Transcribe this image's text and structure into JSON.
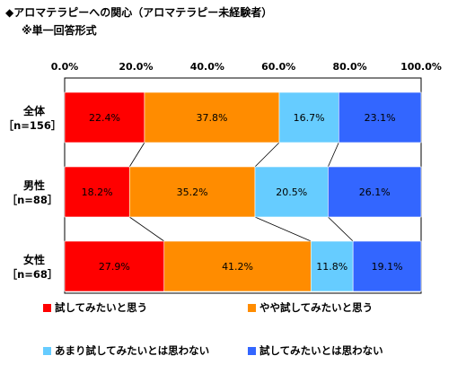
{
  "header": {
    "title": "◆アロマテラピーへの関心（アロマテラピー未経験者）",
    "subtitle": "※単一回答形式"
  },
  "chart_data": {
    "type": "bar",
    "orientation": "horizontal-stacked-100",
    "xlim": [
      0,
      100
    ],
    "ticks": [
      "0.0%",
      "20.0%",
      "40.0%",
      "60.0%",
      "80.0%",
      "100.0%"
    ],
    "grid": false,
    "legend_position": "bottom",
    "categories": [
      {
        "name": "全体",
        "n": "［n=156］"
      },
      {
        "name": "男性",
        "n": "［n=88］"
      },
      {
        "name": "女性",
        "n": "［n=68］"
      }
    ],
    "series": [
      {
        "name": "試してみたいと思う",
        "color": "#ff0000",
        "values": [
          22.4,
          18.2,
          27.9
        ],
        "labels": [
          "22.4%",
          "18.2%",
          "27.9%"
        ]
      },
      {
        "name": "やや試してみたいと思う",
        "color": "#ff8c00",
        "values": [
          37.8,
          35.2,
          41.2
        ],
        "labels": [
          "37.8%",
          "35.2%",
          "41.2%"
        ]
      },
      {
        "name": "あまり試してみたいとは思わない",
        "color": "#66ccff",
        "values": [
          16.7,
          20.5,
          11.8
        ],
        "labels": [
          "16.7%",
          "20.5%",
          "11.8%"
        ]
      },
      {
        "name": "試してみたいとは思わない",
        "color": "#3366ff",
        "values": [
          23.1,
          26.1,
          19.1
        ],
        "labels": [
          "23.1%",
          "26.1%",
          "19.1%"
        ]
      }
    ]
  }
}
